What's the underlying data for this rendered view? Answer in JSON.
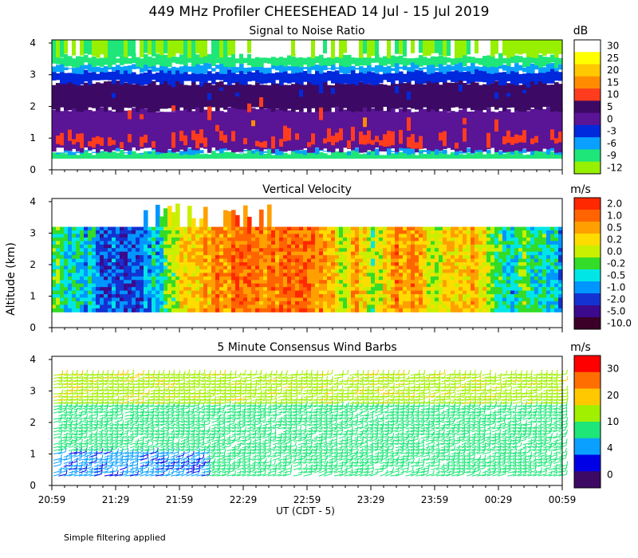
{
  "figure": {
    "title": "449 MHz Profiler CHEESEHEAD 14 Jul - 15 Jul 2019",
    "ylabel": "Altitude (km)",
    "xlabel": "UT  (CDT - 5)",
    "footnote": "Simple filtering applied"
  },
  "chart_data": [
    {
      "type": "heatmap",
      "title": "Signal to Noise Ratio",
      "units": "dB",
      "x_ticks": [
        "20:59",
        "21:29",
        "21:59",
        "22:29",
        "22:59",
        "23:29",
        "23:59",
        "00:29",
        "00:59"
      ],
      "y_ticks": [
        "0",
        "1",
        "2",
        "3",
        "4"
      ],
      "ylim": [
        0,
        4
      ],
      "colorbar_labels": [
        "30",
        "25",
        "20",
        "15",
        "10",
        "5",
        "0",
        "-3",
        "-6",
        "-9",
        "-12"
      ],
      "colorbar_colors": [
        "#ffffff",
        "#ffff00",
        "#ffc800",
        "#ff8c00",
        "#ff3c1e",
        "#3c0a64",
        "#5a1496",
        "#0028dc",
        "#0aa0ff",
        "#1ee678",
        "#96f000"
      ],
      "layers": [
        {
          "from_km": 0.0,
          "to_km": 0.35,
          "level": "none"
        },
        {
          "from_km": 0.35,
          "to_km": 0.55,
          "level": "-9"
        },
        {
          "from_km": 0.55,
          "to_km": 0.62,
          "level": "-6"
        },
        {
          "from_km": 0.62,
          "to_km": 1.9,
          "level": "0"
        },
        {
          "from_km": 1.9,
          "to_km": 2.75,
          "level": "5"
        },
        {
          "from_km": 2.75,
          "to_km": 3.1,
          "level": "-3"
        },
        {
          "from_km": 3.1,
          "to_km": 3.3,
          "level": "-6"
        },
        {
          "from_km": 3.3,
          "to_km": 3.6,
          "level": "-9"
        },
        {
          "from_km": 3.6,
          "to_km": 4.1,
          "level": "-12"
        }
      ]
    },
    {
      "type": "heatmap",
      "title": "Vertical Velocity",
      "units": "m/s",
      "x_ticks": [
        "20:59",
        "21:29",
        "21:59",
        "22:29",
        "22:59",
        "23:29",
        "23:59",
        "00:29",
        "00:59"
      ],
      "y_ticks": [
        "0",
        "1",
        "2",
        "3",
        "4"
      ],
      "ylim": [
        0,
        4
      ],
      "colorbar_labels": [
        "2.0",
        "1.0",
        "0.5",
        "0.2",
        "0.0",
        "-0.2",
        "-0.5",
        "-1.0",
        "-2.0",
        "-5.0",
        "-10.0"
      ],
      "colorbar_colors": [
        "#ff2800",
        "#ff6400",
        "#ffa000",
        "#ffdc00",
        "#c8f000",
        "#32dc28",
        "#00e6e6",
        "#0096ff",
        "#1432d2",
        "#3c0a8c",
        "#3c0028"
      ],
      "data_range_km": [
        0.5,
        3.2
      ]
    },
    {
      "type": "wind_barbs",
      "title": "5 Minute Consensus Wind Barbs",
      "units": "m/s",
      "x_ticks": [
        "20:59",
        "21:29",
        "21:59",
        "22:29",
        "22:59",
        "23:29",
        "23:59",
        "00:29",
        "00:59"
      ],
      "y_ticks": [
        "0",
        "1",
        "2",
        "3",
        "4"
      ],
      "ylim": [
        0,
        4
      ],
      "colorbar_labels": [
        "30",
        "20",
        "10",
        "4",
        "0"
      ],
      "colorbar_colors": [
        "#ff0000",
        "#ff6e00",
        "#ffc800",
        "#a0f000",
        "#1ee678",
        "#0aa0ff",
        "#0000e6",
        "#3c0a64"
      ],
      "data_range_km": [
        0.3,
        3.6
      ]
    }
  ]
}
